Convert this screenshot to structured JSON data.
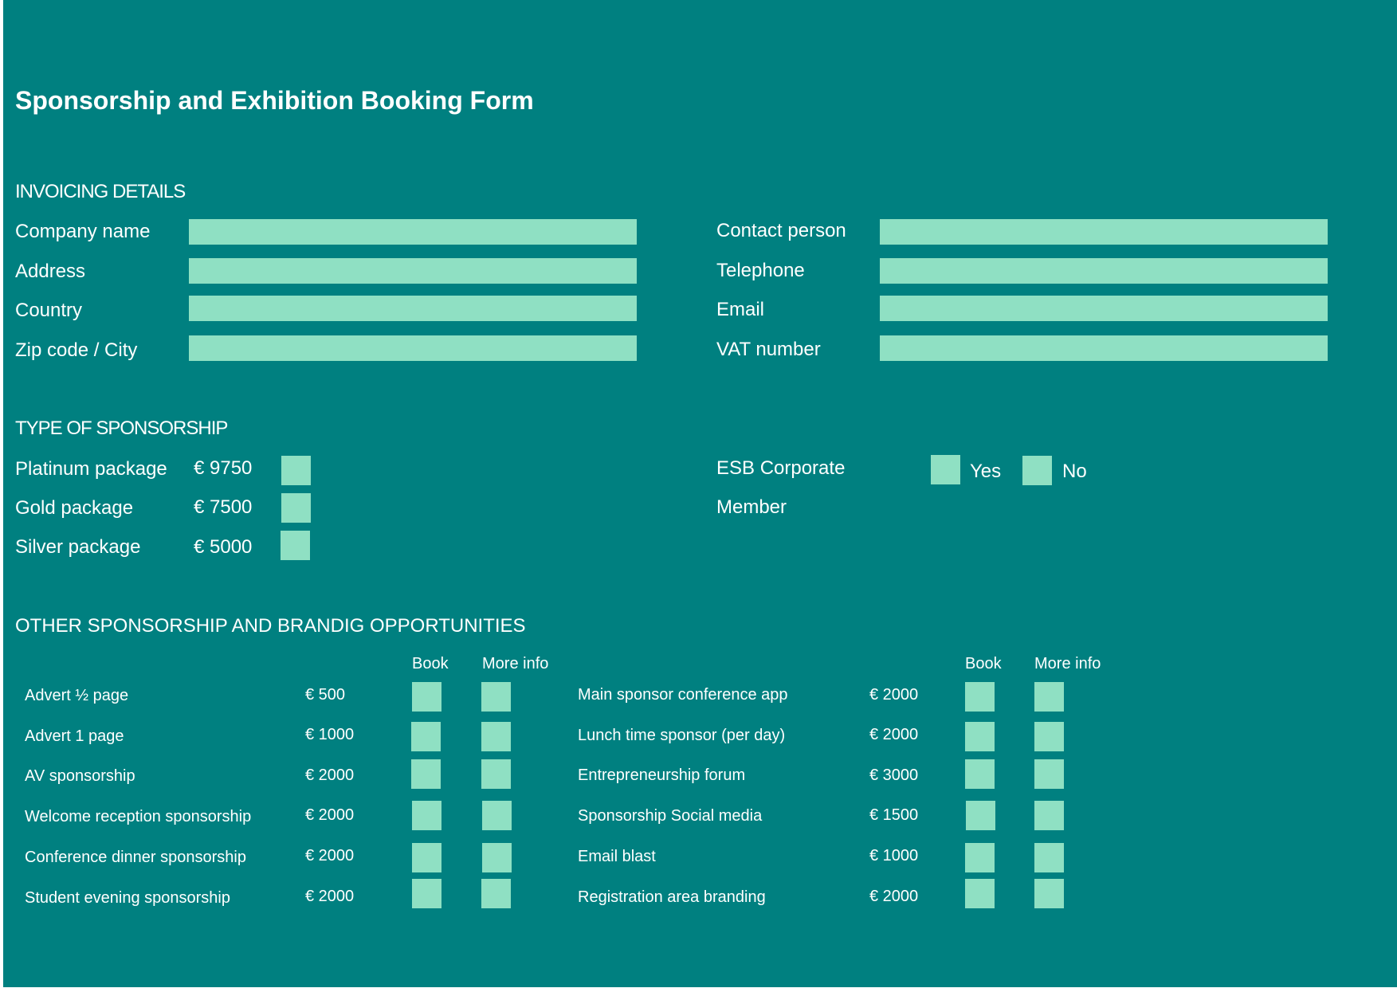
{
  "title": "Sponsorship and Exhibition Booking Form",
  "invoicing": {
    "heading": "INVOICING DETAILS",
    "left_fields": [
      {
        "label": "Company name",
        "value": ""
      },
      {
        "label": "Address",
        "value": ""
      },
      {
        "label": "Country",
        "value": ""
      },
      {
        "label": "Zip code / City",
        "value": ""
      }
    ],
    "right_fields": [
      {
        "label": "Contact person",
        "value": ""
      },
      {
        "label": "Telephone",
        "value": ""
      },
      {
        "label": "Email",
        "value": ""
      },
      {
        "label": "VAT number",
        "value": ""
      }
    ]
  },
  "sponsorship": {
    "heading": "TYPE OF SPONSORSHIP",
    "packages": [
      {
        "label": "Platinum package",
        "price": "€ 9750"
      },
      {
        "label": "Gold package",
        "price": "€ 7500"
      },
      {
        "label": "Silver package",
        "price": "€ 5000"
      }
    ],
    "member_label_line1": "ESB Corporate",
    "member_label_line2": "Member",
    "yes_label": "Yes",
    "no_label": "No"
  },
  "other": {
    "heading": "OTHER SPONSORSHIP AND BRANDIG OPPORTUNITIES",
    "book_header": "Book",
    "more_info_header": "More info",
    "left_items": [
      {
        "label": "Advert ½ page",
        "price": "€ 500"
      },
      {
        "label": "Advert 1 page",
        "price": "€ 1000"
      },
      {
        "label": "AV sponsorship",
        "price": "€ 2000"
      },
      {
        "label": "Welcome reception sponsorship",
        "price": "€ 2000"
      },
      {
        "label": "Conference dinner sponsorship",
        "price": "€ 2000"
      },
      {
        "label": "Student evening sponsorship",
        "price": "€ 2000"
      }
    ],
    "right_items": [
      {
        "label": "Main sponsor conference app",
        "price": "€ 2000"
      },
      {
        "label": "Lunch time sponsor (per day)",
        "price": "€ 2000"
      },
      {
        "label": "Entrepreneurship forum",
        "price": "€ 3000"
      },
      {
        "label": "Sponsorship Social media",
        "price": "€ 1500"
      },
      {
        "label": "Email blast",
        "price": "€ 1000"
      },
      {
        "label": "Registration area branding",
        "price": "€ 2000"
      }
    ]
  },
  "colors": {
    "background": "#008080",
    "field": "#8fe0c3",
    "text": "#ffffff"
  }
}
